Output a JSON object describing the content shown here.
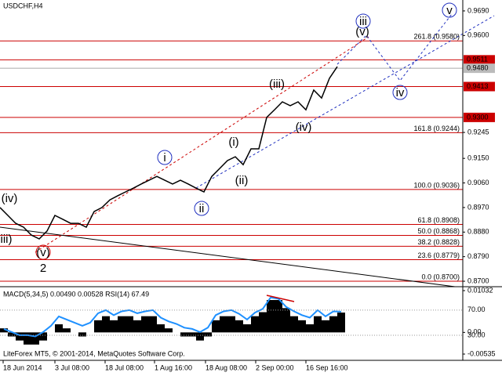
{
  "chart_data": [
    {
      "type": "line",
      "title": "USDCHF,H4",
      "color": "#000000",
      "values": [
        0.897,
        0.8941,
        0.8912,
        0.8898,
        0.8869,
        0.8855,
        0.8884,
        0.8941,
        0.8927,
        0.8912,
        0.8912,
        0.8898,
        0.8955,
        0.897,
        0.8998,
        0.9013,
        0.9027,
        0.9041,
        0.9056,
        0.907,
        0.9084,
        0.907,
        0.9056,
        0.907,
        0.9056,
        0.9041,
        0.9027,
        0.9084,
        0.9113,
        0.9142,
        0.9156,
        0.9127,
        0.9185,
        0.9185,
        0.93,
        0.9328,
        0.9357,
        0.9343,
        0.9357,
        0.9328,
        0.94,
        0.9371,
        0.9443,
        0.9486
      ],
      "xlim": [
        0,
        59
      ],
      "ylim": [
        0.868,
        0.973
      ],
      "yticks": [
        {
          "value": 0.969,
          "label": "0.9690"
        },
        {
          "value": 0.96,
          "label": "0.9600"
        },
        {
          "value": 0.9245,
          "label": "0.9245"
        },
        {
          "value": 0.915,
          "label": "0.9150"
        },
        {
          "value": 0.906,
          "label": "0.9060"
        },
        {
          "value": 0.897,
          "label": "0.8970"
        },
        {
          "value": 0.888,
          "label": "0.8880"
        },
        {
          "value": 0.879,
          "label": "0.8790"
        },
        {
          "value": 0.87,
          "label": "0.8700"
        }
      ],
      "xticks": [
        {
          "value": 0,
          "label": "18 Jun 2014"
        },
        {
          "value": 6.6,
          "label": "3 Jul 08:00"
        },
        {
          "value": 13,
          "label": "18 Jul 08:00"
        },
        {
          "value": 19.3,
          "label": "1 Aug 16:00"
        },
        {
          "value": 25.8,
          "label": "18 Aug 08:00"
        },
        {
          "value": 32.2,
          "label": "2 Sep 00:00"
        },
        {
          "value": 38.6,
          "label": "16 Sep 16:00"
        }
      ],
      "price_levels": [
        0.9511,
        0.9413,
        {
          "value": 0.93,
          "label": "0.9300"
        }
      ],
      "level_color": "#cc0000",
      "current_price": {
        "value": 0.948,
        "label": "0.9480"
      },
      "fib_levels": [
        {
          "value": 0.958,
          "label": "261.8 (0.9580)"
        },
        {
          "value": 0.9244,
          "label": "161.8 (0.9244)"
        },
        {
          "value": 0.9036,
          "label": "100.0 (0.9036)"
        },
        {
          "value": 0.8908,
          "label": "61.8 (0.8908)"
        },
        {
          "value": 0.8868,
          "label": "50.0 (0.8868)"
        },
        {
          "value": 0.8828,
          "label": "38.2 (0.8828)"
        },
        {
          "value": 0.8779,
          "label": "23.6 (0.8779)"
        },
        {
          "value": 0.87,
          "label": "0.0 (0.8700)"
        }
      ],
      "annotations": [
        {
          "text": "(iv)",
          "color": "#cc0000",
          "circled": false
        },
        {
          "text": "iii)",
          "color": "#cc0000",
          "circled": false
        },
        {
          "text": "(v)",
          "color": "#cc0000",
          "circled": true
        },
        {
          "text": "2",
          "color": "#cc0000",
          "circled": false
        },
        {
          "text": "i",
          "color": "#1f2fbf",
          "circled": true
        },
        {
          "text": "ii",
          "color": "#1f2fbf",
          "circled": true
        },
        {
          "text": "(i)",
          "color": "#cc0000",
          "circled": false
        },
        {
          "text": "(ii)",
          "color": "#cc0000",
          "circled": false
        },
        {
          "text": "(iii)",
          "color": "#cc0000",
          "circled": false
        },
        {
          "text": "(iv)",
          "color": "#cc0000",
          "circled": false
        },
        {
          "text": "(v)",
          "color": "#cc0000",
          "circled": false
        },
        {
          "text": "iii",
          "color": "#1f2fbf",
          "circled": true
        },
        {
          "text": "iv",
          "color": "#1f2fbf",
          "circled": true
        },
        {
          "text": "v",
          "color": "#1f2fbf",
          "circled": true
        }
      ],
      "footer": "LiteForex MT5, © 2001-2014, MetaQuotes Software Corp."
    },
    {
      "type": "bar",
      "title": "MACD(5,34,5) 0.00490 0.00528 RSI(14) 67.49",
      "color": "#000000",
      "values": [
        0.001,
        -0.001,
        -0.002,
        -0.003,
        -0.003,
        -0.002,
        0.0,
        0.002,
        0.001,
        0.0,
        -0.001,
        0.0,
        0.003,
        0.004,
        0.003,
        0.004,
        0.004,
        0.003,
        0.004,
        0.004,
        0.002,
        0.001,
        0.0,
        -0.001,
        -0.001,
        -0.002,
        -0.001,
        0.003,
        0.004,
        0.004,
        0.003,
        0.002,
        0.004,
        0.005,
        0.008,
        0.008,
        0.006,
        0.004,
        0.003,
        0.002,
        0.004,
        0.003,
        0.004,
        0.0049
      ],
      "series": [
        {
          "name": "RSI(14)",
          "color": "#1e90ff",
          "axis": "y2",
          "values": [
            40,
            35,
            30,
            30,
            28,
            35,
            45,
            60,
            55,
            50,
            45,
            50,
            65,
            70,
            62,
            68,
            70,
            65,
            68,
            70,
            58,
            52,
            48,
            42,
            40,
            35,
            42,
            62,
            68,
            70,
            64,
            55,
            66,
            72,
            90,
            88,
            75,
            68,
            62,
            58,
            70,
            60,
            68,
            67.49
          ]
        }
      ],
      "xlim": [
        0,
        59
      ],
      "ylim": [
        -0.00535,
        0.01032
      ],
      "yticks": [
        {
          "value": 0.01032,
          "label": "0.01032"
        },
        {
          "value": 0,
          "label": "0.00"
        },
        {
          "value": -0.00535,
          "label": "-0.00535"
        }
      ],
      "y2lim": [
        0,
        101
      ],
      "y2ticks": [
        {
          "value": 70,
          "label": "70.00"
        },
        {
          "value": 30,
          "label": "30.00"
        }
      ],
      "grid": true
    }
  ]
}
